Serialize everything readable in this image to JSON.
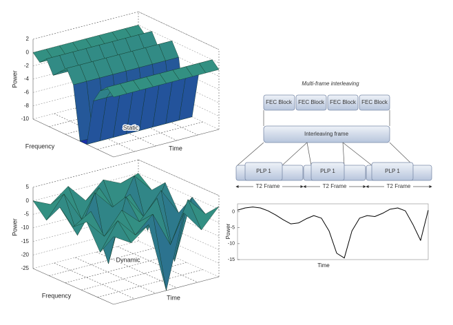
{
  "chart_data": [
    {
      "type": "surface",
      "label": "Static",
      "xlabel": "Frequency",
      "ylabel": "Time",
      "zlabel": "Power",
      "zlim": [
        -10,
        2
      ],
      "zticks": [
        2,
        0,
        -2,
        -4,
        -6,
        -8,
        -10
      ],
      "values": [
        0,
        -1,
        0,
        -2,
        -1,
        0,
        -2,
        -10,
        -10,
        -3,
        -1,
        0,
        -1
      ]
    },
    {
      "type": "surface-grid",
      "label": "Dynamic",
      "xlabel": "Frequency",
      "ylabel": "Time",
      "zlabel": "Power",
      "zlim": [
        -25,
        5
      ],
      "zticks": [
        5,
        0,
        -5,
        -10,
        -15,
        -20,
        -25
      ],
      "values": [
        [
          0,
          -3,
          2,
          -5,
          1,
          -2,
          0
        ],
        [
          -5,
          3,
          -8,
          2,
          -10,
          3,
          -4
        ],
        [
          2,
          -10,
          4,
          -3,
          0,
          -15,
          1
        ],
        [
          -3,
          1,
          -20,
          3,
          -6,
          2,
          -8
        ],
        [
          1,
          -6,
          2,
          -4,
          3,
          -22,
          0
        ],
        [
          -8,
          2,
          -5,
          1,
          -12,
          3,
          -4
        ],
        [
          0,
          -4,
          1,
          -25,
          2,
          -6,
          1
        ]
      ]
    },
    {
      "type": "line",
      "xlabel": "Time",
      "ylabel": "Power",
      "ylim": [
        -15,
        2.5
      ],
      "yticks": [
        0,
        -5,
        -10,
        -15
      ],
      "color": "#000000",
      "categories": [
        null,
        null,
        null,
        null,
        null,
        null,
        null,
        null,
        null,
        null,
        null,
        null,
        null,
        null,
        null,
        null,
        null,
        null,
        null,
        null,
        null,
        null,
        null,
        null,
        null,
        null
      ],
      "values": [
        0.5,
        1.2,
        1.5,
        1.2,
        0.3,
        -1,
        -2.5,
        -3.8,
        -3.5,
        -2.2,
        -1.2,
        -2,
        -6,
        -13,
        -14.5,
        -6,
        -2,
        -1.2,
        -1.5,
        -0.5,
        0.8,
        1.2,
        0.3,
        -4,
        -9,
        0.5
      ]
    }
  ],
  "diagram": {
    "title": "Multi-frame interleaving",
    "fec_blocks": [
      "FEC Block",
      "FEC Block",
      "FEC Block",
      "FEC Block"
    ],
    "interleaving_frame": "Interleaving frame",
    "plps": [
      "PLP 1",
      "PLP 1",
      "PLP 1"
    ],
    "frames": [
      "T2 Frame",
      "T2 Frame",
      "T2 Frame"
    ]
  }
}
